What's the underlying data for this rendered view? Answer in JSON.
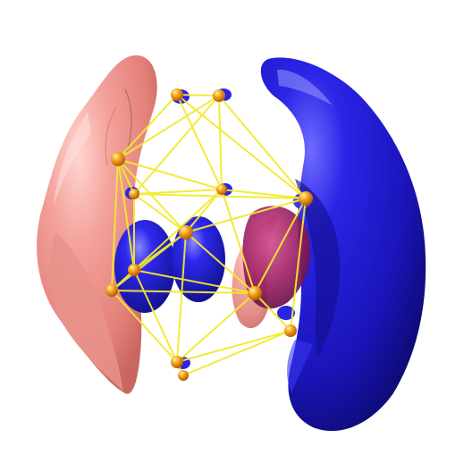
{
  "scene": {
    "background": "#ffffff",
    "colors": {
      "positive_lobe": "#f08a86",
      "negative_lobe": "#1a14c8",
      "magenta_overlap": "#b0236e",
      "bond": "#f2ea2e",
      "atom": "#f0a020",
      "atom_highlight": "#ffe36a"
    }
  }
}
